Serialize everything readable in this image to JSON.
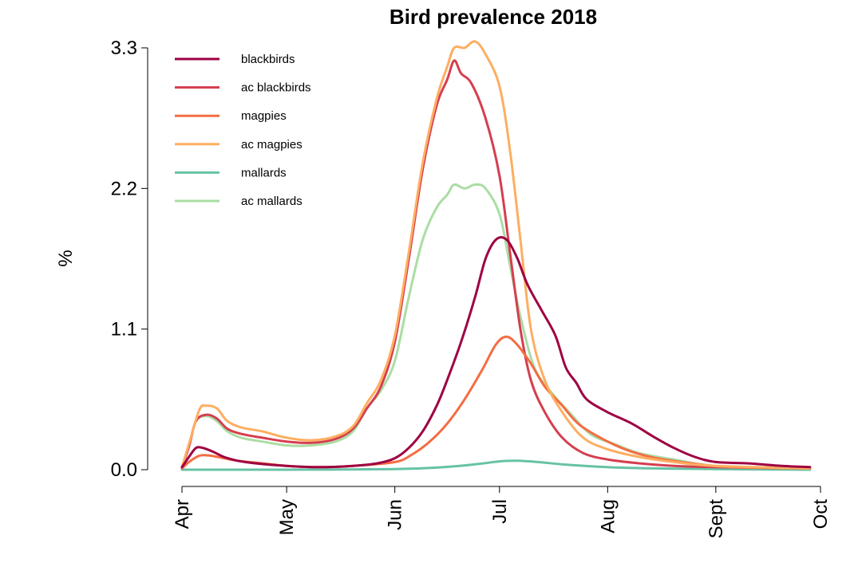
{
  "chart_data": {
    "type": "line",
    "title": "Bird prevalence 2018",
    "xlabel": "",
    "ylabel": "%",
    "xlim": [
      "2018-04-01",
      "2018-10-01"
    ],
    "ylim": [
      0,
      3.3
    ],
    "x_ticks": [
      {
        "date": "2018-04-01",
        "label": "Apr"
      },
      {
        "date": "2018-05-01",
        "label": "May"
      },
      {
        "date": "2018-06-01",
        "label": "Jun"
      },
      {
        "date": "2018-07-01",
        "label": "Jul"
      },
      {
        "date": "2018-08-01",
        "label": "Aug"
      },
      {
        "date": "2018-09-01",
        "label": "Sept"
      },
      {
        "date": "2018-10-01",
        "label": "Oct"
      }
    ],
    "y_ticks": [
      {
        "value": 0.0,
        "label": "0.0"
      },
      {
        "value": 1.1,
        "label": "1.1"
      },
      {
        "value": 2.2,
        "label": "2.2"
      },
      {
        "value": 3.3,
        "label": "3.3"
      }
    ],
    "grid": false,
    "legend_position": "top-left",
    "series": [
      {
        "name": "blackbirds",
        "color": "#9E0142",
        "points": [
          [
            "2018-04-01",
            0.02
          ],
          [
            "2018-04-03",
            0.1
          ],
          [
            "2018-04-05",
            0.17
          ],
          [
            "2018-04-07",
            0.17
          ],
          [
            "2018-04-10",
            0.14
          ],
          [
            "2018-04-13",
            0.1
          ],
          [
            "2018-04-17",
            0.07
          ],
          [
            "2018-04-22",
            0.05
          ],
          [
            "2018-05-01",
            0.03
          ],
          [
            "2018-05-10",
            0.02
          ],
          [
            "2018-05-20",
            0.03
          ],
          [
            "2018-05-27",
            0.05
          ],
          [
            "2018-06-01",
            0.09
          ],
          [
            "2018-06-05",
            0.17
          ],
          [
            "2018-06-09",
            0.3
          ],
          [
            "2018-06-13",
            0.5
          ],
          [
            "2018-06-16",
            0.7
          ],
          [
            "2018-06-20",
            1.0
          ],
          [
            "2018-06-24",
            1.35
          ],
          [
            "2018-06-27",
            1.65
          ],
          [
            "2018-06-30",
            1.8
          ],
          [
            "2018-07-03",
            1.8
          ],
          [
            "2018-07-06",
            1.66
          ],
          [
            "2018-07-09",
            1.45
          ],
          [
            "2018-07-13",
            1.25
          ],
          [
            "2018-07-17",
            1.05
          ],
          [
            "2018-07-20",
            0.8
          ],
          [
            "2018-07-23",
            0.68
          ],
          [
            "2018-07-26",
            0.55
          ],
          [
            "2018-08-01",
            0.45
          ],
          [
            "2018-08-08",
            0.36
          ],
          [
            "2018-08-14",
            0.26
          ],
          [
            "2018-08-20",
            0.17
          ],
          [
            "2018-08-26",
            0.1
          ],
          [
            "2018-09-01",
            0.06
          ],
          [
            "2018-09-10",
            0.05
          ],
          [
            "2018-09-20",
            0.03
          ],
          [
            "2018-09-28",
            0.02
          ]
        ]
      },
      {
        "name": "ac blackbirds",
        "color": "#D53E4F",
        "points": [
          [
            "2018-04-01",
            0.02
          ],
          [
            "2018-04-03",
            0.18
          ],
          [
            "2018-04-05",
            0.38
          ],
          [
            "2018-04-08",
            0.43
          ],
          [
            "2018-04-11",
            0.4
          ],
          [
            "2018-04-14",
            0.32
          ],
          [
            "2018-04-18",
            0.28
          ],
          [
            "2018-04-24",
            0.25
          ],
          [
            "2018-05-01",
            0.22
          ],
          [
            "2018-05-08",
            0.21
          ],
          [
            "2018-05-15",
            0.24
          ],
          [
            "2018-05-20",
            0.32
          ],
          [
            "2018-05-24",
            0.48
          ],
          [
            "2018-05-28",
            0.65
          ],
          [
            "2018-06-01",
            1.0
          ],
          [
            "2018-06-05",
            1.65
          ],
          [
            "2018-06-09",
            2.35
          ],
          [
            "2018-06-13",
            2.85
          ],
          [
            "2018-06-16",
            3.05
          ],
          [
            "2018-06-18",
            3.2
          ],
          [
            "2018-06-20",
            3.1
          ],
          [
            "2018-06-23",
            3.02
          ],
          [
            "2018-06-27",
            2.75
          ],
          [
            "2018-07-01",
            2.3
          ],
          [
            "2018-07-04",
            1.7
          ],
          [
            "2018-07-07",
            1.1
          ],
          [
            "2018-07-10",
            0.7
          ],
          [
            "2018-07-14",
            0.45
          ],
          [
            "2018-07-19",
            0.25
          ],
          [
            "2018-07-25",
            0.13
          ],
          [
            "2018-08-01",
            0.08
          ],
          [
            "2018-08-10",
            0.05
          ],
          [
            "2018-08-20",
            0.03
          ],
          [
            "2018-09-01",
            0.02
          ],
          [
            "2018-09-28",
            0.01
          ]
        ]
      },
      {
        "name": "magpies",
        "color": "#F46D43",
        "points": [
          [
            "2018-04-01",
            0.01
          ],
          [
            "2018-04-03",
            0.06
          ],
          [
            "2018-04-06",
            0.11
          ],
          [
            "2018-04-09",
            0.11
          ],
          [
            "2018-04-13",
            0.09
          ],
          [
            "2018-04-17",
            0.07
          ],
          [
            "2018-04-24",
            0.05
          ],
          [
            "2018-05-01",
            0.03
          ],
          [
            "2018-05-10",
            0.02
          ],
          [
            "2018-05-20",
            0.03
          ],
          [
            "2018-06-01",
            0.06
          ],
          [
            "2018-06-06",
            0.12
          ],
          [
            "2018-06-11",
            0.22
          ],
          [
            "2018-06-16",
            0.36
          ],
          [
            "2018-06-21",
            0.55
          ],
          [
            "2018-06-26",
            0.78
          ],
          [
            "2018-06-30",
            0.98
          ],
          [
            "2018-07-03",
            1.04
          ],
          [
            "2018-07-06",
            0.98
          ],
          [
            "2018-07-10",
            0.83
          ],
          [
            "2018-07-14",
            0.65
          ],
          [
            "2018-07-19",
            0.5
          ],
          [
            "2018-07-24",
            0.35
          ],
          [
            "2018-08-01",
            0.22
          ],
          [
            "2018-08-08",
            0.14
          ],
          [
            "2018-08-15",
            0.09
          ],
          [
            "2018-08-25",
            0.05
          ],
          [
            "2018-09-05",
            0.02
          ],
          [
            "2018-09-28",
            0.01
          ]
        ]
      },
      {
        "name": "ac magpies",
        "color": "#FDAE61",
        "points": [
          [
            "2018-04-01",
            0.02
          ],
          [
            "2018-04-03",
            0.2
          ],
          [
            "2018-04-06",
            0.47
          ],
          [
            "2018-04-08",
            0.5
          ],
          [
            "2018-04-11",
            0.48
          ],
          [
            "2018-04-14",
            0.38
          ],
          [
            "2018-04-18",
            0.33
          ],
          [
            "2018-04-24",
            0.3
          ],
          [
            "2018-05-01",
            0.25
          ],
          [
            "2018-05-08",
            0.23
          ],
          [
            "2018-05-15",
            0.26
          ],
          [
            "2018-05-20",
            0.34
          ],
          [
            "2018-05-24",
            0.52
          ],
          [
            "2018-05-28",
            0.7
          ],
          [
            "2018-06-01",
            1.05
          ],
          [
            "2018-06-05",
            1.7
          ],
          [
            "2018-06-09",
            2.4
          ],
          [
            "2018-06-13",
            2.9
          ],
          [
            "2018-06-16",
            3.15
          ],
          [
            "2018-06-18",
            3.3
          ],
          [
            "2018-06-21",
            3.3
          ],
          [
            "2018-06-24",
            3.35
          ],
          [
            "2018-06-27",
            3.25
          ],
          [
            "2018-07-01",
            3.0
          ],
          [
            "2018-07-04",
            2.5
          ],
          [
            "2018-07-07",
            1.8
          ],
          [
            "2018-07-10",
            1.1
          ],
          [
            "2018-07-14",
            0.7
          ],
          [
            "2018-07-19",
            0.45
          ],
          [
            "2018-07-25",
            0.25
          ],
          [
            "2018-08-01",
            0.16
          ],
          [
            "2018-08-10",
            0.1
          ],
          [
            "2018-08-20",
            0.06
          ],
          [
            "2018-09-01",
            0.03
          ],
          [
            "2018-09-28",
            0.01
          ]
        ]
      },
      {
        "name": "mallards",
        "color": "#66C2A5",
        "points": [
          [
            "2018-04-01",
            0.0
          ],
          [
            "2018-05-01",
            0.0
          ],
          [
            "2018-06-01",
            0.005
          ],
          [
            "2018-06-15",
            0.02
          ],
          [
            "2018-06-25",
            0.045
          ],
          [
            "2018-07-01",
            0.065
          ],
          [
            "2018-07-06",
            0.07
          ],
          [
            "2018-07-12",
            0.06
          ],
          [
            "2018-07-20",
            0.04
          ],
          [
            "2018-08-01",
            0.02
          ],
          [
            "2018-08-15",
            0.01
          ],
          [
            "2018-09-01",
            0.005
          ],
          [
            "2018-09-28",
            0.0
          ]
        ]
      },
      {
        "name": "ac mallards",
        "color": "#ABDDA4",
        "points": [
          [
            "2018-04-01",
            0.02
          ],
          [
            "2018-04-03",
            0.18
          ],
          [
            "2018-04-05",
            0.38
          ],
          [
            "2018-04-08",
            0.42
          ],
          [
            "2018-04-11",
            0.38
          ],
          [
            "2018-04-14",
            0.3
          ],
          [
            "2018-04-18",
            0.25
          ],
          [
            "2018-04-24",
            0.22
          ],
          [
            "2018-05-01",
            0.19
          ],
          [
            "2018-05-08",
            0.19
          ],
          [
            "2018-05-15",
            0.22
          ],
          [
            "2018-05-20",
            0.3
          ],
          [
            "2018-05-24",
            0.48
          ],
          [
            "2018-05-28",
            0.62
          ],
          [
            "2018-06-01",
            0.85
          ],
          [
            "2018-06-05",
            1.35
          ],
          [
            "2018-06-09",
            1.8
          ],
          [
            "2018-06-13",
            2.05
          ],
          [
            "2018-06-16",
            2.15
          ],
          [
            "2018-06-18",
            2.23
          ],
          [
            "2018-06-21",
            2.2
          ],
          [
            "2018-06-24",
            2.23
          ],
          [
            "2018-06-27",
            2.2
          ],
          [
            "2018-07-01",
            2.0
          ],
          [
            "2018-07-04",
            1.6
          ],
          [
            "2018-07-07",
            1.2
          ],
          [
            "2018-07-11",
            0.8
          ],
          [
            "2018-07-16",
            0.6
          ],
          [
            "2018-07-21",
            0.45
          ],
          [
            "2018-07-27",
            0.28
          ],
          [
            "2018-08-03",
            0.2
          ],
          [
            "2018-08-10",
            0.13
          ],
          [
            "2018-08-20",
            0.08
          ],
          [
            "2018-09-01",
            0.03
          ],
          [
            "2018-09-28",
            0.01
          ]
        ]
      }
    ]
  }
}
